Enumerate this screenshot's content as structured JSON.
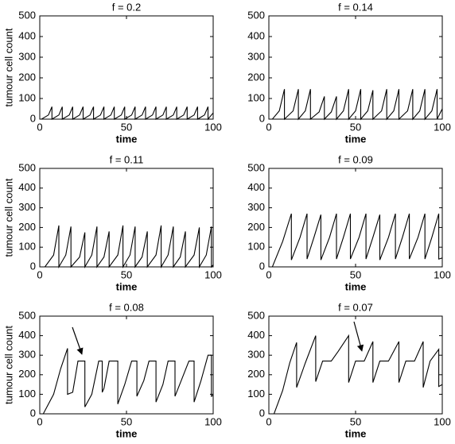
{
  "chart_data": [
    {
      "type": "line",
      "title": "f = 0.2",
      "xlabel": "time",
      "ylabel": "tumour cell count",
      "color": "#000000",
      "xlim": [
        0,
        100
      ],
      "ylim": [
        0,
        500
      ],
      "xticks": [
        0,
        50,
        100
      ],
      "yticks": [
        0,
        100,
        200,
        300,
        400,
        500
      ],
      "x": [
        0,
        1,
        5,
        7,
        7,
        11,
        13,
        13,
        17,
        19,
        19,
        23,
        25,
        25,
        29,
        31,
        31,
        35,
        37,
        37,
        41,
        43,
        43,
        47,
        49,
        49,
        53,
        55,
        55,
        59,
        61,
        61,
        65,
        67,
        67,
        71,
        73,
        73,
        77,
        79,
        79,
        83,
        85,
        85,
        89,
        91,
        91,
        95,
        97,
        97,
        100
      ],
      "values": [
        0,
        0,
        20,
        60,
        0,
        20,
        60,
        0,
        20,
        60,
        0,
        20,
        60,
        0,
        20,
        60,
        0,
        20,
        60,
        0,
        20,
        60,
        0,
        20,
        60,
        0,
        20,
        60,
        0,
        20,
        60,
        0,
        20,
        60,
        0,
        20,
        60,
        0,
        20,
        60,
        0,
        20,
        60,
        0,
        20,
        60,
        0,
        20,
        60,
        0,
        30
      ]
    },
    {
      "type": "line",
      "title": "f = 0.14",
      "xlabel": "time",
      "color": "#000000",
      "xlim": [
        0,
        100
      ],
      "ylim": [
        0,
        500
      ],
      "xticks": [
        0,
        50,
        100
      ],
      "yticks": [
        0,
        100,
        200,
        300,
        400,
        500
      ],
      "x": [
        0,
        2,
        6,
        9,
        9,
        14,
        17,
        17,
        21,
        24,
        24,
        29,
        32,
        32,
        36,
        39,
        39,
        43,
        46,
        46,
        50,
        53,
        53,
        57,
        60,
        60,
        65,
        68,
        68,
        72,
        75,
        75,
        80,
        83,
        83,
        87,
        90,
        90,
        94,
        97,
        97,
        100
      ],
      "values": [
        0,
        0,
        40,
        145,
        0,
        40,
        145,
        0,
        40,
        145,
        0,
        35,
        110,
        0,
        35,
        110,
        0,
        40,
        145,
        0,
        40,
        145,
        0,
        40,
        140,
        0,
        40,
        145,
        0,
        40,
        145,
        0,
        40,
        145,
        0,
        40,
        145,
        0,
        40,
        145,
        0,
        50
      ]
    },
    {
      "type": "line",
      "title": "f = 0.11",
      "xlabel": "time",
      "ylabel": "tumour cell count",
      "color": "#000000",
      "xlim": [
        0,
        100
      ],
      "ylim": [
        0,
        500
      ],
      "xticks": [
        0,
        50,
        100
      ],
      "yticks": [
        0,
        100,
        200,
        300,
        400,
        500
      ],
      "x": [
        0,
        3,
        8,
        11,
        11,
        15,
        18,
        18,
        23,
        26,
        26,
        30,
        33,
        33,
        37,
        40,
        40,
        45,
        48,
        48,
        52,
        55,
        55,
        59,
        62,
        62,
        67,
        70,
        70,
        74,
        77,
        77,
        81,
        84,
        84,
        89,
        92,
        92,
        96,
        99,
        99,
        100
      ],
      "values": [
        0,
        0,
        60,
        210,
        0,
        60,
        205,
        0,
        50,
        175,
        0,
        60,
        205,
        0,
        50,
        180,
        0,
        60,
        210,
        0,
        60,
        205,
        0,
        50,
        180,
        0,
        60,
        210,
        0,
        60,
        205,
        0,
        50,
        180,
        0,
        60,
        200,
        0,
        60,
        205,
        0,
        10
      ]
    },
    {
      "type": "line",
      "title": "f = 0.09",
      "xlabel": "time",
      "color": "#000000",
      "xlim": [
        0,
        100
      ],
      "ylim": [
        0,
        500
      ],
      "xticks": [
        0,
        50,
        100
      ],
      "yticks": [
        0,
        100,
        200,
        300,
        400,
        500
      ],
      "x": [
        0,
        2,
        8,
        13,
        13,
        18,
        22,
        22,
        26,
        30,
        30,
        35,
        39,
        39,
        43,
        47,
        47,
        52,
        56,
        56,
        60,
        64,
        64,
        69,
        73,
        73,
        77,
        81,
        81,
        86,
        90,
        90,
        94,
        98,
        98,
        100
      ],
      "values": [
        0,
        0,
        130,
        270,
        35,
        150,
        270,
        40,
        150,
        265,
        35,
        150,
        270,
        40,
        150,
        270,
        40,
        150,
        270,
        40,
        150,
        265,
        35,
        150,
        270,
        40,
        150,
        270,
        40,
        150,
        270,
        40,
        150,
        270,
        40,
        45
      ]
    },
    {
      "type": "line",
      "title": "f = 0.08",
      "xlabel": "time",
      "ylabel": "tumour cell count",
      "color": "#000000",
      "xlim": [
        0,
        100
      ],
      "ylim": [
        0,
        500
      ],
      "xticks": [
        0,
        50,
        100
      ],
      "yticks": [
        0,
        100,
        200,
        300,
        400,
        500
      ],
      "x": [
        0,
        2,
        8,
        12,
        16,
        16,
        19,
        22,
        26,
        26,
        30,
        34,
        36,
        36,
        37,
        40,
        45,
        45,
        49,
        53,
        56,
        56,
        60,
        63,
        67,
        67,
        71,
        74,
        78,
        78,
        82,
        86,
        89,
        89,
        93,
        97,
        99,
        99,
        100
      ],
      "values": [
        0,
        0,
        100,
        230,
        335,
        100,
        110,
        270,
        270,
        35,
        100,
        270,
        270,
        110,
        130,
        270,
        270,
        50,
        150,
        270,
        270,
        90,
        170,
        270,
        270,
        60,
        150,
        270,
        270,
        90,
        180,
        270,
        270,
        60,
        170,
        300,
        300,
        90,
        95
      ]
    },
    {
      "type": "line",
      "title": "f = 0.07",
      "xlabel": "time",
      "color": "#000000",
      "xlim": [
        0,
        100
      ],
      "ylim": [
        0,
        500
      ],
      "xticks": [
        0,
        50,
        100
      ],
      "yticks": [
        0,
        100,
        200,
        300,
        400,
        500
      ],
      "x": [
        0,
        3,
        8,
        12,
        16,
        16,
        21,
        27,
        27,
        31,
        36,
        40,
        46,
        46,
        50,
        55,
        60,
        60,
        64,
        69,
        75,
        75,
        79,
        84,
        89,
        89,
        93,
        98,
        98,
        100
      ],
      "values": [
        0,
        0,
        120,
        260,
        365,
        135,
        260,
        400,
        165,
        270,
        270,
        320,
        400,
        160,
        270,
        270,
        370,
        160,
        270,
        270,
        370,
        160,
        270,
        270,
        370,
        135,
        270,
        330,
        140,
        150
      ]
    }
  ]
}
